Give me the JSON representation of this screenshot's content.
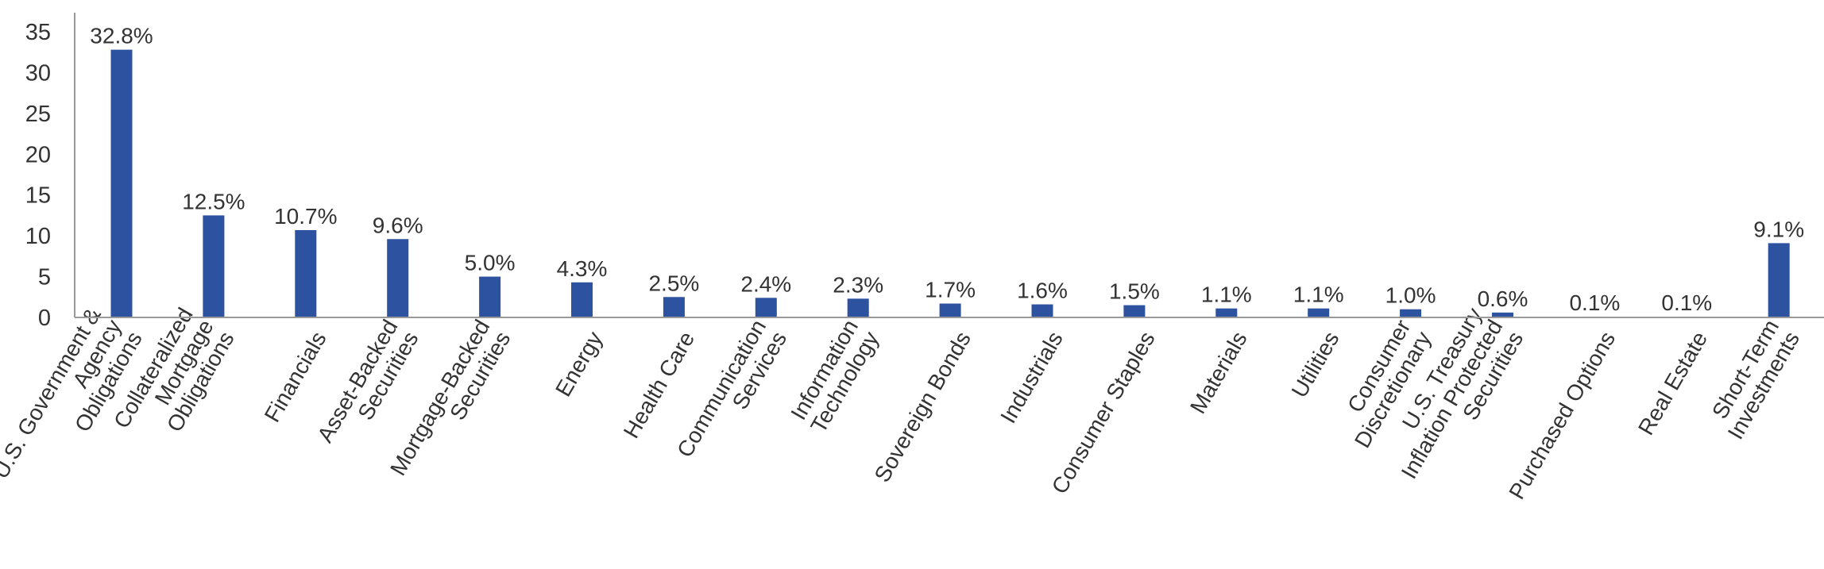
{
  "chart_data": {
    "type": "bar",
    "categories": [
      [
        "U.S. Government &",
        "Agency",
        "Obligations"
      ],
      [
        "Collateralized",
        "Mortgage",
        "Obligations"
      ],
      [
        "Financials"
      ],
      [
        "Asset-Backed",
        "Securities"
      ],
      [
        "Mortgage-Backed",
        "Securities"
      ],
      [
        "Energy"
      ],
      [
        "Health Care"
      ],
      [
        "Communication",
        "Services"
      ],
      [
        "Information",
        "Technology"
      ],
      [
        "Sovereign Bonds"
      ],
      [
        "Industrials"
      ],
      [
        "Consumer Staples"
      ],
      [
        "Materials"
      ],
      [
        "Utilities"
      ],
      [
        "Consumer",
        "Discretionary"
      ],
      [
        "U.S. Treasury",
        "Inflation Protected",
        "Securities"
      ],
      [
        "Purchased Options"
      ],
      [
        "Real Estate"
      ],
      [
        "Short-Term",
        "Investments"
      ]
    ],
    "values": [
      32.8,
      12.5,
      10.7,
      9.6,
      5.0,
      4.3,
      2.5,
      2.4,
      2.3,
      1.7,
      1.6,
      1.5,
      1.1,
      1.1,
      1.0,
      0.6,
      0.1,
      0.1,
      9.1
    ],
    "data_labels": [
      "32.8%",
      "12.5%",
      "10.7%",
      "9.6%",
      "5.0%",
      "4.3%",
      "2.5%",
      "2.4%",
      "2.3%",
      "1.7%",
      "1.6%",
      "1.5%",
      "1.1%",
      "1.1%",
      "1.0%",
      "0.6%",
      "0.1%",
      "0.1%",
      "9.1%"
    ],
    "y_ticks": [
      "0",
      "5",
      "10",
      "15",
      "20",
      "25",
      "30",
      "35"
    ],
    "ylim": [
      0,
      35
    ],
    "bar_color": "#2C52A0",
    "grid": false,
    "legend": "none",
    "title": "",
    "xlabel": "",
    "ylabel": ""
  }
}
